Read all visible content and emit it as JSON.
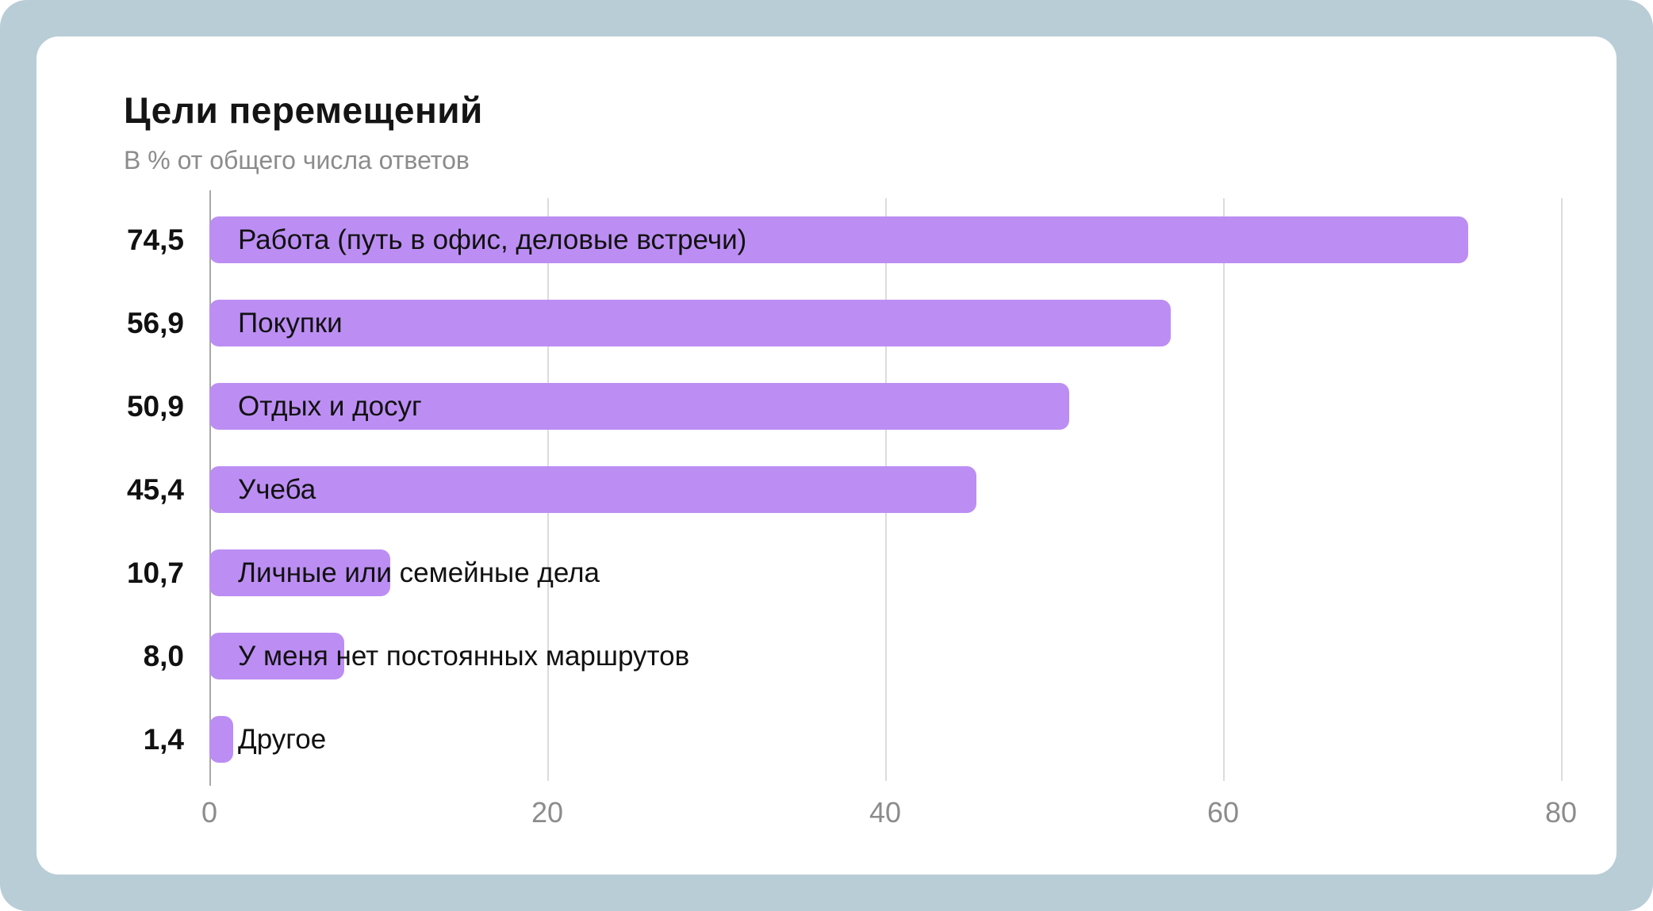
{
  "page": {
    "frame_color": "#b9cdd6",
    "card_color": "#ffffff"
  },
  "chart_data": {
    "type": "bar",
    "orientation": "horizontal",
    "title": "Цели перемещений",
    "subtitle": "В % от общего числа ответов",
    "categories": [
      "Работа (путь в офис, деловые встречи)",
      "Покупки",
      "Отдых и досуг",
      "Учеба",
      "Личные или семейные дела",
      "У меня нет постоянных маршрутов",
      "Другое"
    ],
    "values": [
      74.5,
      56.9,
      50.9,
      45.4,
      10.7,
      8.0,
      1.4
    ],
    "value_labels": [
      "74,5",
      "56,9",
      "50,9",
      "45,4",
      "10,7",
      "8,0",
      "1,4"
    ],
    "x_ticks": [
      0,
      20,
      40,
      60,
      80
    ],
    "x_tick_labels": [
      "0",
      "20",
      "40",
      "60",
      "80"
    ],
    "xlim": [
      0,
      80
    ],
    "bar_color": "#bc8ef3",
    "grid": true,
    "legend_position": "none"
  }
}
